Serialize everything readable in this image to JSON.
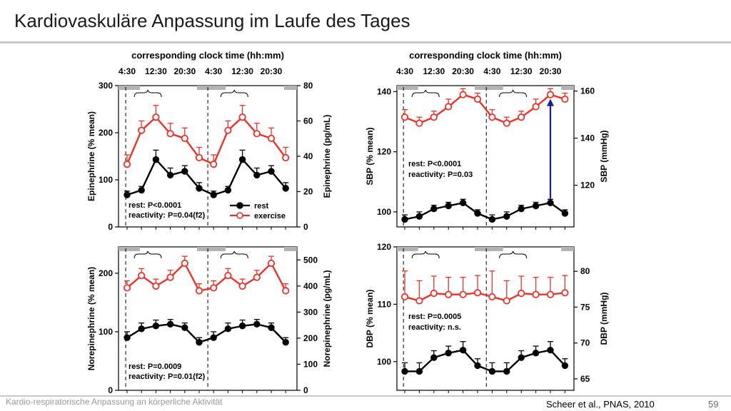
{
  "slide": {
    "title": "Kardiovaskuläre Anpassung im Laufe des Tages",
    "footer_left": "Kardio-respiratorische Anpassung an körperliche Aktivität",
    "citation": "Scheer et al., PNAS, 2010",
    "page_number": "59"
  },
  "colors": {
    "rest": "#000000",
    "exercise": "#e8332a",
    "arrow": "#1a1aa0",
    "bar": "#b3b3b3"
  },
  "chart_data": [
    {
      "id": "epinephrine",
      "type": "line",
      "top_axis_title": "corresponding clock time (hh:mm)",
      "top_ticks": [
        "4:30",
        "12:30",
        "20:30",
        "4:30",
        "12:30",
        "20:30"
      ],
      "ylabel": "Epinephrine (% mean)",
      "y2label": "Epinephrine (pg/mL)",
      "ylim": [
        0,
        300
      ],
      "yticks": [
        0,
        100,
        200,
        300
      ],
      "y2lim": [
        0,
        80
      ],
      "y2ticks": [
        0,
        20,
        40,
        60,
        80
      ],
      "x": [
        1,
        2,
        3,
        4,
        5,
        6,
        7,
        8,
        9,
        10,
        11,
        12
      ],
      "series": [
        {
          "name": "rest",
          "values": [
            68,
            78,
            143,
            110,
            118,
            82,
            68,
            78,
            143,
            110,
            118,
            82
          ],
          "errors": [
            8,
            8,
            20,
            15,
            12,
            12,
            8,
            8,
            20,
            15,
            12,
            12
          ]
        },
        {
          "name": "exercise",
          "values": [
            133,
            205,
            233,
            198,
            188,
            147,
            133,
            205,
            233,
            198,
            188,
            147
          ],
          "errors": [
            20,
            20,
            25,
            22,
            22,
            22,
            20,
            20,
            25,
            22,
            22,
            22
          ]
        }
      ],
      "annotations": [
        "rest: P<0.0001",
        "reactivity: P=0.04(f2)"
      ],
      "legend": [
        "rest",
        "exercise"
      ],
      "legend_position": "lower-right"
    },
    {
      "id": "sbp",
      "type": "line",
      "top_axis_title": "corresponding clock time (hh:mm)",
      "top_ticks": [
        "4:30",
        "12:30",
        "20:30",
        "4:30",
        "12:30",
        "20:30"
      ],
      "ylabel": "SBP (% mean)",
      "y2label": "SBP (mmHg)",
      "ylim": [
        95,
        142
      ],
      "yticks": [
        100,
        120,
        140
      ],
      "y2ticks": [
        120,
        140,
        160
      ],
      "x": [
        1,
        2,
        3,
        4,
        5,
        6,
        7,
        8,
        9,
        10,
        11,
        12
      ],
      "series": [
        {
          "name": "rest",
          "values": [
            97.5,
            98.5,
            101,
            102,
            103,
            99.5,
            97.5,
            98.5,
            101,
            102,
            103,
            99.5
          ],
          "errors": [
            1.5,
            1.5,
            1.2,
            1.2,
            1.2,
            1.2,
            1.5,
            1.5,
            1.2,
            1.2,
            1.2,
            1.2
          ]
        },
        {
          "name": "exercise",
          "values": [
            131.5,
            129.5,
            131.5,
            135,
            139,
            137.5,
            131.5,
            129.5,
            131.5,
            135,
            139,
            137.5
          ],
          "errors": [
            2.5,
            2,
            2,
            2.5,
            2,
            2,
            2.5,
            2,
            2,
            2.5,
            2,
            2
          ]
        }
      ],
      "annotations": [
        "rest: P<0.0001",
        "reactivity: P=0.03"
      ]
    },
    {
      "id": "norepinephrine",
      "type": "line",
      "ylabel": "Norepinephrine (% mean)",
      "y2label": "Norepinephrine (pg/mL)",
      "ylim": [
        0,
        245
      ],
      "yticks": [
        0,
        100,
        200
      ],
      "y2ticks": [
        0,
        100,
        200,
        300,
        400,
        500
      ],
      "x": [
        1,
        2,
        3,
        4,
        5,
        6,
        7,
        8,
        9,
        10,
        11,
        12
      ],
      "series": [
        {
          "name": "rest",
          "values": [
            90,
            105,
            110,
            113,
            107,
            82,
            90,
            105,
            110,
            113,
            107,
            82
          ],
          "errors": [
            10,
            10,
            10,
            8,
            8,
            8,
            10,
            10,
            10,
            8,
            8,
            8
          ]
        },
        {
          "name": "exercise",
          "values": [
            175,
            196,
            178,
            193,
            217,
            170,
            175,
            196,
            178,
            193,
            217,
            170
          ],
          "errors": [
            12,
            12,
            12,
            12,
            12,
            12,
            12,
            12,
            12,
            12,
            12,
            12
          ]
        }
      ],
      "annotations": [
        "rest: P=0.0009",
        "reactivity: P=0.01(f2)"
      ]
    },
    {
      "id": "dbp",
      "type": "line",
      "ylabel": "DBP (% mean)",
      "y2label": "DBP (mmHg)",
      "ylim": [
        95,
        120
      ],
      "yticks": [
        100,
        110,
        120
      ],
      "y2ticks": [
        65,
        70,
        75,
        80
      ],
      "x": [
        1,
        2,
        3,
        4,
        5,
        6,
        7,
        8,
        9,
        10,
        11,
        12
      ],
      "series": [
        {
          "name": "rest",
          "values": [
            98.3,
            98.3,
            100.7,
            101.5,
            102,
            99.3,
            98.3,
            98.3,
            100.7,
            101.5,
            102,
            99.3
          ],
          "errors": [
            1.5,
            1.5,
            1.2,
            1.2,
            1.5,
            1.2,
            1.5,
            1.5,
            1.2,
            1.2,
            1.5,
            1.2
          ]
        },
        {
          "name": "exercise",
          "values": [
            111.3,
            110.6,
            111.9,
            111.7,
            111.7,
            112.0,
            111.3,
            110.6,
            111.9,
            111.7,
            111.7,
            112.0
          ],
          "errors": [
            4.5,
            3.5,
            3.0,
            3.0,
            3.0,
            3.0,
            4.5,
            3.5,
            3.0,
            3.0,
            3.0,
            3.0
          ]
        }
      ],
      "annotations": [
        "rest: P=0.0005",
        "reactivity: n.s."
      ]
    }
  ]
}
